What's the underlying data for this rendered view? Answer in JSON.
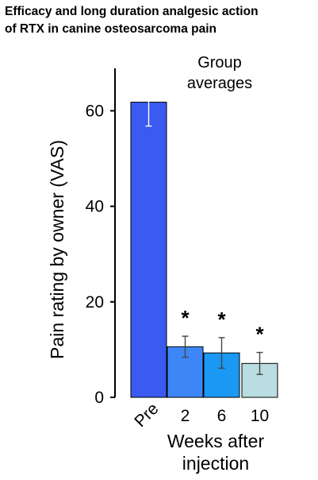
{
  "title_line1": "Efficacy and long duration analgesic action",
  "title_line2": "of RTX in canine osteosarcoma pain",
  "chart_data": {
    "type": "bar",
    "title": "Efficacy and long duration analgesic action of RTX in canine osteosarcoma pain",
    "annotation_line1": "Group",
    "annotation_line2": "averages",
    "ylabel": "Pain rating by owner (VAS)",
    "xlabel_line1": "Weeks after",
    "xlabel_line2": "injection",
    "categories": [
      "Pre",
      "2",
      "6",
      "10"
    ],
    "values": [
      61.8,
      10.6,
      9.3,
      7.1
    ],
    "errors": [
      5.0,
      2.2,
      3.2,
      2.3
    ],
    "significance": [
      "",
      "*",
      "*",
      "*"
    ],
    "colors": [
      "#3a5af0",
      "#3d86f7",
      "#1a98f3",
      "#b9dde0"
    ],
    "ylim": [
      0,
      70
    ],
    "yticks": [
      0,
      20,
      40,
      60
    ],
    "grid": false
  }
}
